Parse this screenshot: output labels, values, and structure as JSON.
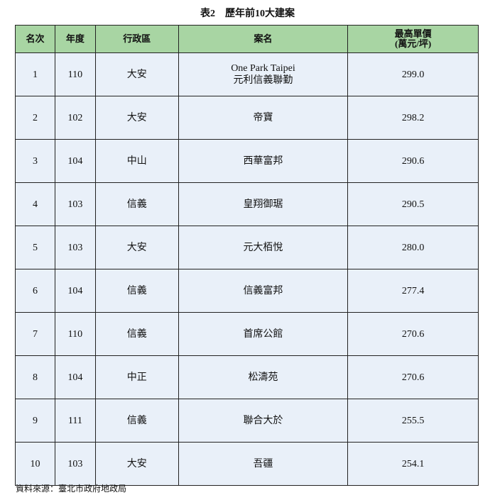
{
  "title": "表2　歷年前10大建案",
  "table": {
    "headers": [
      "名次",
      "年度",
      "行政區",
      "案名",
      "最高單價\n(萬元/坪)"
    ],
    "rows": [
      [
        "1",
        "110",
        "大安",
        "One Park Taipei\n元利信義聯勤",
        "299.0"
      ],
      [
        "2",
        "102",
        "大安",
        "帝寶",
        "298.2"
      ],
      [
        "3",
        "104",
        "中山",
        "西華富邦",
        "290.6"
      ],
      [
        "4",
        "103",
        "信義",
        "皇翔御琚",
        "290.5"
      ],
      [
        "5",
        "103",
        "大安",
        "元大栢悅",
        "280.0"
      ],
      [
        "6",
        "104",
        "信義",
        "信義富邦",
        "277.4"
      ],
      [
        "7",
        "110",
        "信義",
        "首席公館",
        "270.6"
      ],
      [
        "8",
        "104",
        "中正",
        "松濤苑",
        "270.6"
      ],
      [
        "9",
        "111",
        "信義",
        "聯合大於",
        "255.5"
      ],
      [
        "10",
        "103",
        "大安",
        "吾疆",
        "254.1"
      ]
    ]
  },
  "source": "資料來源：臺北市政府地政局",
  "colors": {
    "header_bg": "#a8d5a3",
    "row_bg": "#e9f0f9"
  }
}
